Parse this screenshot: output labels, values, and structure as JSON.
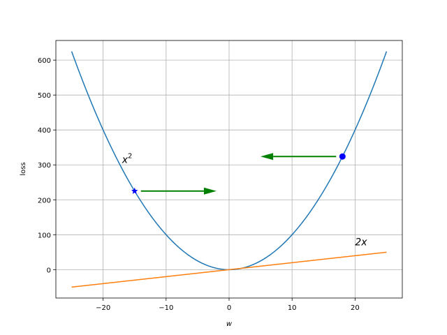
{
  "chart_data": {
    "type": "line",
    "xlabel": "w",
    "ylabel": "loss",
    "xlim": [
      -27.5,
      27.5
    ],
    "ylim": [
      -81.25,
      656.25
    ],
    "xticks": [
      -20,
      -10,
      0,
      10,
      20
    ],
    "yticks": [
      0,
      100,
      200,
      300,
      400,
      500,
      600
    ],
    "grid": true,
    "series": [
      {
        "color": "#1f77b4",
        "formula": "x^2",
        "x_range": [
          -25,
          25
        ]
      },
      {
        "color": "#ff7f0e",
        "formula": "2x",
        "x_range": [
          -25,
          25
        ]
      }
    ],
    "points": [
      {
        "x": -15,
        "y": 225,
        "marker": "star",
        "color": "#0000ff"
      },
      {
        "x": 18,
        "y": 324,
        "marker": "circle",
        "color": "#0000ff"
      }
    ],
    "arrows": [
      {
        "from": [
          -14,
          225
        ],
        "to": [
          -2,
          225
        ],
        "color": "#008000"
      },
      {
        "from": [
          17,
          324
        ],
        "to": [
          5,
          324
        ],
        "color": "#008000"
      }
    ],
    "annotations": [
      {
        "text": "x",
        "sup": "2",
        "x": -17,
        "y": 305
      },
      {
        "text": "2x",
        "x": 20,
        "y": 70
      }
    ]
  }
}
